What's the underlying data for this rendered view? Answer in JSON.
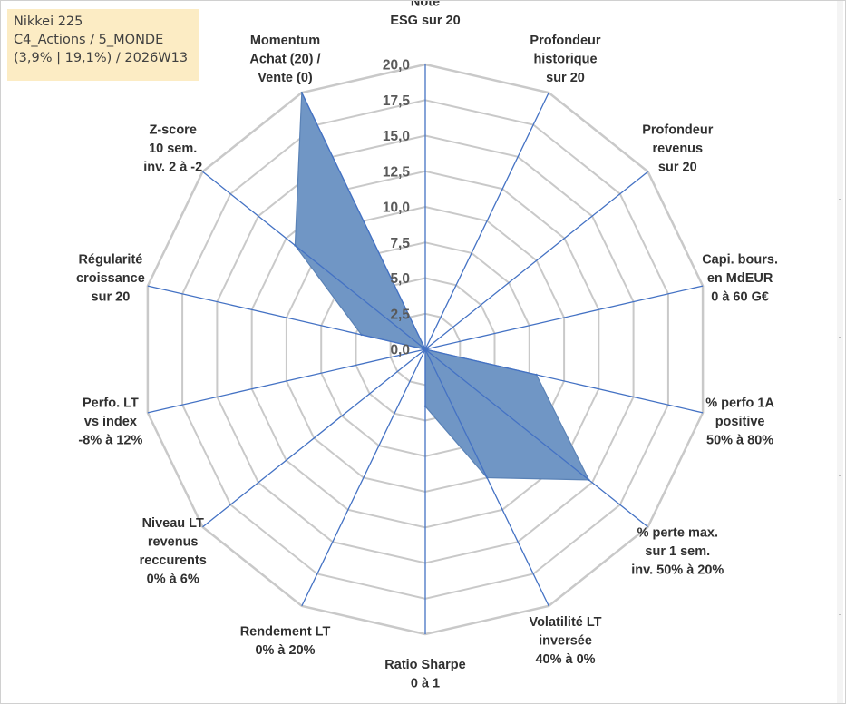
{
  "info": {
    "line1": "Nikkei 225",
    "line2": "C4_Actions / 5_MONDE",
    "line3": "(3,9% | 19,1%) / 2026W13"
  },
  "colors": {
    "series_fill": "#7096c5",
    "series_stroke": "#5a82b6",
    "spoke": "#4472c4",
    "grid": "#c9c9c9",
    "info_bg": "#fcecc4"
  },
  "chart_data": {
    "type": "radar",
    "rmin": 0,
    "rmax": 20,
    "tick_step": 2.5,
    "tick_labels": [
      "0,0",
      "2,5",
      "5,0",
      "7,5",
      "10,0",
      "12,5",
      "15,0",
      "17,5",
      "20,0"
    ],
    "categories": [
      [
        "Note",
        "ESG sur 20"
      ],
      [
        "Profondeur",
        "historique",
        "sur 20"
      ],
      [
        "Profondeur",
        "revenus",
        "sur 20"
      ],
      [
        "Capi. bours.",
        "en MdEUR",
        "0 à 60 G€"
      ],
      [
        "% perfo 1A",
        "positive",
        "50% à 80%"
      ],
      [
        "% perte max.",
        "sur 1 sem.",
        "inv. 50% à 20%"
      ],
      [
        "Volatilité LT",
        "inversée",
        "40% à 0%"
      ],
      [
        "Ratio Sharpe",
        "0 à 1"
      ],
      [
        "Rendement LT",
        "0% à 20%"
      ],
      [
        "Niveau LT",
        "revenus",
        "reccurents",
        "0% à 6%"
      ],
      [
        "Perfo. LT",
        "vs index",
        "-8% à 12%"
      ],
      [
        "Régularité",
        "croissance",
        "sur 20"
      ],
      [
        "Z-score",
        "10 sem.",
        "inv. 2 à -2"
      ],
      [
        "Momentum",
        "Achat (20) /",
        "Vente (0)"
      ]
    ],
    "series": [
      {
        "name": "Nikkei 225",
        "values": [
          0,
          0,
          0,
          0,
          8.0,
          14.7,
          10.0,
          4.0,
          0,
          0,
          0,
          4.6,
          11.7,
          20.0
        ]
      }
    ]
  }
}
